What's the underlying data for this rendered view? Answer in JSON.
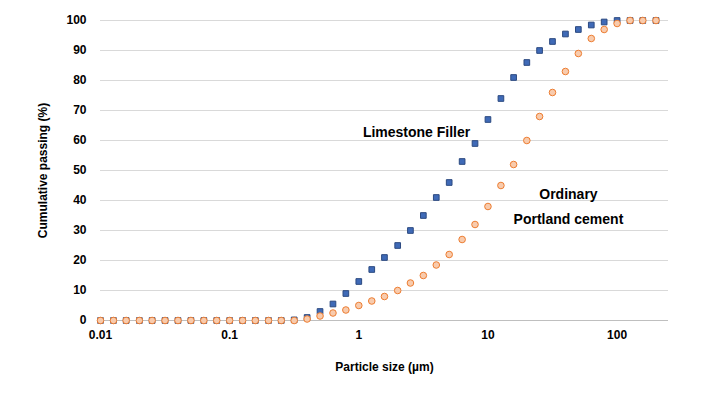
{
  "chart_data": {
    "type": "scatter",
    "x_label": "Particle size (µm)",
    "y_label": "Cumulative passing (%)",
    "log": "x",
    "grid": true,
    "xlim": [
      0.01,
      250
    ],
    "xticks": [
      0.01,
      0.1,
      1,
      10,
      100
    ],
    "ylim": [
      0,
      100
    ],
    "yticks": [
      0,
      10,
      20,
      30,
      40,
      50,
      60,
      70,
      80,
      90,
      100
    ],
    "x": [
      0.01,
      0.0126,
      0.0158,
      0.02,
      0.0251,
      0.0316,
      0.0398,
      0.0501,
      0.0631,
      0.0794,
      0.1,
      0.126,
      0.158,
      0.2,
      0.251,
      0.316,
      0.398,
      0.501,
      0.631,
      0.794,
      1,
      1.26,
      1.58,
      2,
      2.51,
      3.16,
      3.98,
      5.01,
      6.31,
      7.94,
      10,
      12.6,
      15.8,
      20,
      25.1,
      31.6,
      39.8,
      50.1,
      63.1,
      79.4,
      100,
      126,
      158,
      200
    ],
    "series": [
      {
        "name": "Limestone Filler",
        "color": "#4472c4",
        "marker": "square",
        "values": [
          0,
          0,
          0,
          0,
          0,
          0,
          0,
          0,
          0,
          0,
          0,
          0,
          0,
          0,
          0,
          0.2,
          1,
          3,
          5.5,
          9,
          13,
          17,
          21,
          25,
          30,
          35,
          41,
          46,
          53,
          59,
          67,
          74,
          81,
          86,
          90,
          93,
          95.5,
          97,
          98.5,
          99.5,
          100,
          100,
          100,
          100
        ]
      },
      {
        "name": "Ordinary\nPortland cement",
        "color": "#ed7d31",
        "marker": "circle",
        "values": [
          0,
          0,
          0,
          0,
          0,
          0,
          0,
          0,
          0,
          0,
          0,
          0,
          0,
          0,
          0,
          0,
          0.5,
          1.5,
          2.5,
          3.5,
          5,
          6.5,
          8,
          10,
          12.5,
          15,
          18.5,
          22,
          27,
          32,
          38,
          45,
          52,
          60,
          68,
          76,
          83,
          89,
          94,
          97,
          99,
          100,
          100,
          100
        ]
      }
    ],
    "annotations": [
      {
        "text": "Limestone Filler",
        "x": 2.8,
        "y": 64
      },
      {
        "text": "Ordinary\nPortland cement",
        "x": 42,
        "y": 39
      }
    ]
  }
}
